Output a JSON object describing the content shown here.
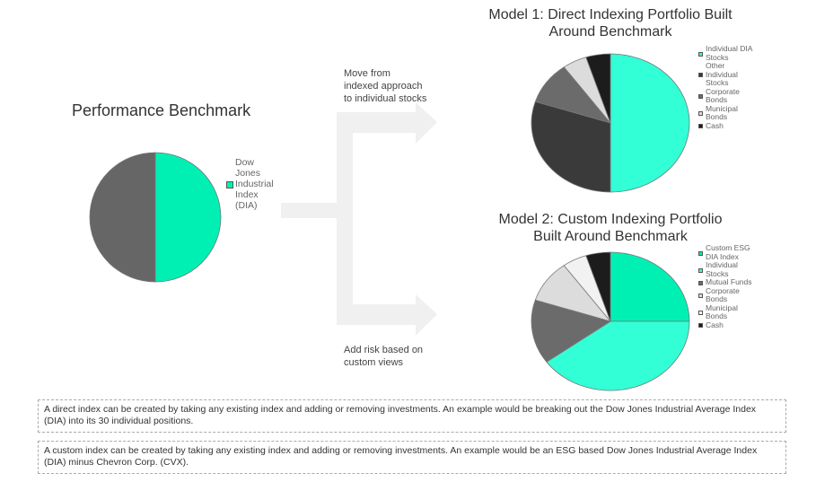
{
  "benchmark": {
    "title": "Performance Benchmark",
    "legend": [
      {
        "label": "Dow Jones Industrial Index (DIA)",
        "lines": [
          "Dow",
          "Jones",
          "Industrial",
          "Index",
          "(DIA)"
        ],
        "color": "#00f0b4"
      }
    ]
  },
  "arrows": {
    "top_label": "Move from indexed approach to individual stocks",
    "top_lines": [
      "Move from",
      "indexed approach",
      "to individual stocks"
    ],
    "bottom_label": "Add risk based on custom views",
    "bottom_lines": [
      "Add risk based on",
      "custom views"
    ]
  },
  "model1": {
    "title_line1": "Model 1: Direct Indexing Portfolio Built",
    "title_line2": "Around Benchmark",
    "legend": [
      {
        "lines": [
          "Individual DIA",
          "Stocks"
        ],
        "color": "#33ffd6"
      },
      {
        "lines": [
          "Other",
          "Individual",
          "Stocks"
        ],
        "color": "#3a3a3a"
      },
      {
        "lines": [
          "Corporate",
          "Bonds"
        ],
        "color": "#6b6b6b"
      },
      {
        "lines": [
          "Municipal",
          "Bonds"
        ],
        "color": "#dcdcdc"
      },
      {
        "lines": [
          "Cash"
        ],
        "color": "#1c1c1c"
      }
    ]
  },
  "model2": {
    "title_line1": "Model 2: Custom Indexing Portfolio",
    "title_line2": "Built Around Benchmark",
    "legend": [
      {
        "lines": [
          "Custom ESG",
          "DIA Index"
        ],
        "color": "#00f0b4"
      },
      {
        "lines": [
          "Individual",
          "Stocks"
        ],
        "color": "#33ffd6"
      },
      {
        "lines": [
          "Mutual Funds"
        ],
        "color": "#6b6b6b"
      },
      {
        "lines": [
          "Corporate",
          "Bonds"
        ],
        "color": "#dcdcdc"
      },
      {
        "lines": [
          "Municipal",
          "Bonds"
        ],
        "color": "#f2f2f2"
      },
      {
        "lines": [
          "Cash"
        ],
        "color": "#1c1c1c"
      }
    ]
  },
  "notes": {
    "direct": "A direct index can be created by taking any existing index and adding or removing investments. An example would be breaking out the Dow Jones Industrial Average Index (DIA) into its 30 individual positions.",
    "custom": "A custom index can be created by taking any existing index and adding or removing investments. An example would be an ESG based Dow Jones Industrial Average Index (DIA) minus Chevron Corp. (CVX)."
  },
  "chart_data": [
    {
      "type": "pie",
      "title": "Performance Benchmark",
      "categories": [
        "Dow Jones Industrial Index (DIA)",
        "(unlabeled)"
      ],
      "values": [
        50,
        50
      ],
      "colors": [
        "#00f0b4",
        "#666666"
      ],
      "legend_position": "right"
    },
    {
      "type": "pie",
      "title": "Model 1: Direct Indexing Portfolio Built Around Benchmark",
      "categories": [
        "Individual DIA Stocks",
        "Other Individual Stocks",
        "Corporate Bonds",
        "Municipal Bonds",
        "Cash"
      ],
      "values": [
        50,
        30,
        10,
        5,
        5
      ],
      "colors": [
        "#33ffd6",
        "#3a3a3a",
        "#6b6b6b",
        "#dcdcdc",
        "#1c1c1c"
      ],
      "legend_position": "right"
    },
    {
      "type": "pie",
      "title": "Model 2: Custom Indexing Portfolio Built Around Benchmark",
      "categories": [
        "Custom ESG DIA Index",
        "Individual Stocks",
        "Mutual Funds",
        "Corporate Bonds",
        "Municipal Bonds",
        "Cash"
      ],
      "values": [
        25,
        40,
        15,
        10,
        5,
        5
      ],
      "colors": [
        "#00f0b4",
        "#33ffd6",
        "#6b6b6b",
        "#dcdcdc",
        "#f2f2f2",
        "#1c1c1c"
      ],
      "legend_position": "right"
    }
  ]
}
